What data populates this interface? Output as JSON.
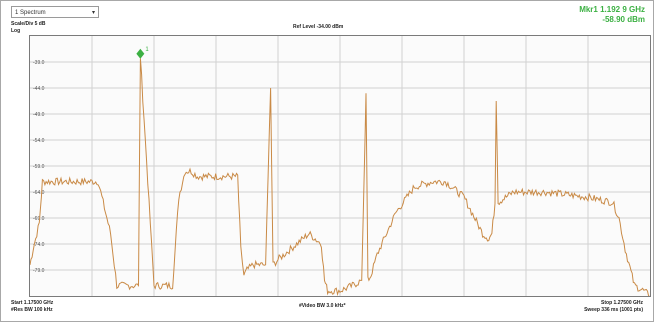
{
  "dropdown": {
    "value": "1 Spectrum"
  },
  "marker": {
    "title": "Mkr1 1.192 9 GHz",
    "value": "-58.90 dBm",
    "label": "1"
  },
  "top_labels": {
    "scale": "Scale/Div 5 dB",
    "log": "Log",
    "ref": "Ref Level -34.00 dBm"
  },
  "y_ticks": [
    "-39.0",
    "-44.0",
    "-49.0",
    "-54.0",
    "-59.0",
    "-64.0",
    "-69.0",
    "-74.0",
    "-79.0"
  ],
  "bottom": {
    "start": "Start 1.17500 GHz",
    "rbw": "#Res BW 100 kHz",
    "vbw": "#Video BW 3.0 kHz*",
    "stop": "Stop 1.27500 GHz",
    "sweep": "Sweep 336 ms (1001 pts)"
  },
  "colors": {
    "trace": "#c98a46",
    "marker": "#3cb043",
    "grid": "#d2d2d2"
  },
  "chart_data": {
    "type": "line",
    "ylabel": "dBm",
    "ylim": [
      -84,
      -34
    ],
    "x": [
      0,
      0.005,
      0.015,
      0.02,
      0.11,
      0.13,
      0.14,
      0.175,
      0.178,
      0.2,
      0.23,
      0.24,
      0.25,
      0.26,
      0.27,
      0.335,
      0.34,
      0.345,
      0.35,
      0.36,
      0.38,
      0.388,
      0.392,
      0.4,
      0.44,
      0.45,
      0.47,
      0.475,
      0.48,
      0.5,
      0.52,
      0.535,
      0.542,
      0.545,
      0.55,
      0.56,
      0.59,
      0.62,
      0.65,
      0.67,
      0.7,
      0.73,
      0.74,
      0.745,
      0.75,
      0.752,
      0.755,
      0.78,
      0.83,
      0.9,
      0.94,
      0.95,
      0.96,
      0.975,
      0.99,
      1.0
    ],
    "y": [
      -78,
      -75,
      -70,
      -62,
      -62,
      -72,
      -82,
      -82,
      -38,
      -82,
      -82,
      -65,
      -60,
      -60,
      -61,
      -61,
      -75,
      -80,
      -79,
      -78,
      -78,
      -44,
      -78,
      -77,
      -73,
      -72,
      -74,
      -81,
      -83,
      -83,
      -82,
      -81,
      -45,
      -81,
      -80,
      -76,
      -68,
      -63,
      -62,
      -62,
      -65,
      -72,
      -73,
      -72,
      -66,
      -46,
      -66,
      -64,
      -64,
      -65,
      -66,
      -69,
      -75,
      -82,
      -83,
      -84
    ]
  }
}
